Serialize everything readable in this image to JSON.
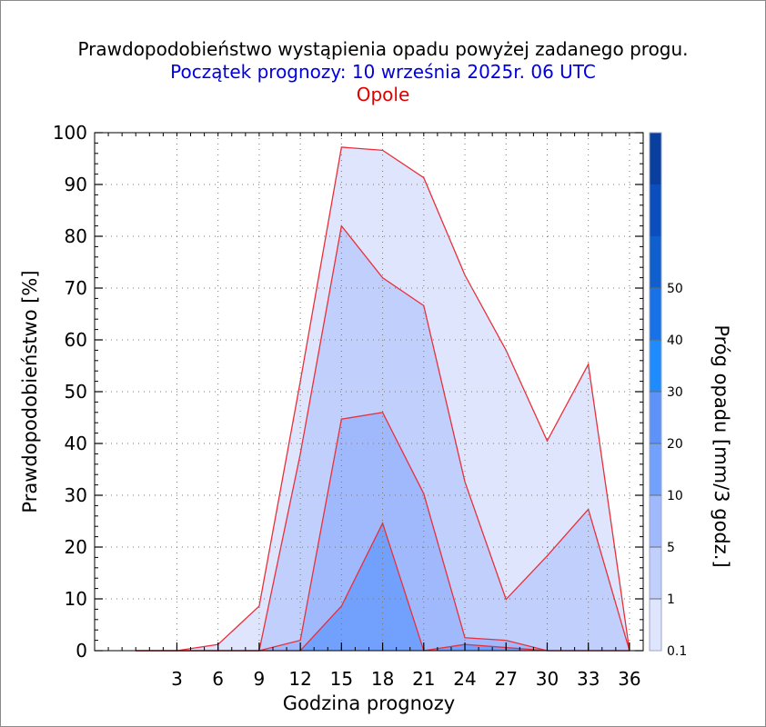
{
  "title": "Prawdopodobieństwo wystąpienia opadu powyżej zadanego progu.",
  "subtitle": "Początek prognozy: 10 września 2025r. 06 UTC",
  "location": "Opole",
  "colors": {
    "title": "#000000",
    "subtitle": "#0000dd",
    "location": "#e00000",
    "area_outline": "#e8303a"
  },
  "chart_data": {
    "type": "area",
    "title": "Prawdopodobieństwo wystąpienia opadu powyżej zadanego progu.",
    "xlabel": "Godzina prognozy",
    "ylabel": "Prawdopodobieństwo [%]",
    "xlim": [
      -3,
      37
    ],
    "ylim": [
      0,
      100
    ],
    "x": [
      0,
      3,
      6,
      9,
      12,
      15,
      18,
      21,
      24,
      27,
      30,
      33,
      36
    ],
    "x_tick_labels": [
      "3",
      "6",
      "9",
      "12",
      "15",
      "18",
      "21",
      "24",
      "27",
      "30",
      "33",
      "36"
    ],
    "y_ticks": [
      0,
      10,
      20,
      30,
      40,
      50,
      60,
      70,
      80,
      90,
      100
    ],
    "grid": true,
    "series": [
      {
        "name": "0.1",
        "color": "#dfe5fd",
        "values": [
          0,
          0,
          1.2,
          8.6,
          52,
          97.2,
          96.6,
          91.3,
          72.5,
          58,
          40.5,
          55.3,
          0
        ]
      },
      {
        "name": "1",
        "color": "#c0cffc",
        "values": [
          0,
          0,
          0,
          0,
          38,
          82,
          72,
          66.6,
          32.6,
          9.9,
          18.3,
          27.3,
          0
        ]
      },
      {
        "name": "5",
        "color": "#9fb9fc",
        "values": [
          0,
          0,
          0,
          0,
          2,
          44.7,
          46,
          30.3,
          2.5,
          2,
          0,
          0,
          0
        ]
      },
      {
        "name": "10",
        "color": "#71a1fc",
        "values": [
          0,
          0,
          0,
          0,
          0,
          8.6,
          24.6,
          0,
          1.2,
          0.6,
          0,
          0,
          0
        ]
      }
    ],
    "colorbar": {
      "title": "Próg opadu [mm/3 godz.]",
      "labels": [
        "0.1",
        "1",
        "5",
        "10",
        "20",
        "30",
        "40",
        "50"
      ],
      "colors": [
        "#dfe5fd",
        "#c0cffc",
        "#9fb9fc",
        "#71a1fc",
        "#5d93f8",
        "#1e8cff",
        "#1672e6",
        "#0f5fcf",
        "#0b4fbe",
        "#093f9f"
      ]
    }
  }
}
